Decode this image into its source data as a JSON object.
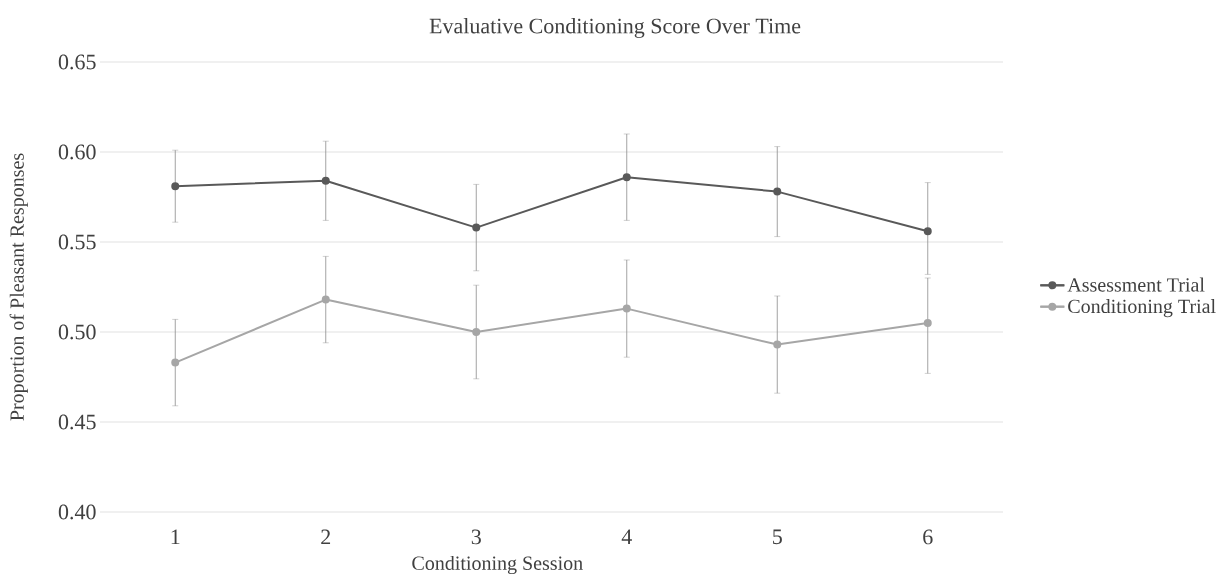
{
  "chart_data": {
    "type": "line",
    "title": "Evaluative Conditioning Score Over Time",
    "xlabel": "Conditioning Session",
    "ylabel": "Proportion of Pleasant Responses",
    "categories": [
      "1",
      "2",
      "3",
      "4",
      "5",
      "6"
    ],
    "series": [
      {
        "name": "Assessment Trial",
        "color": "#595959",
        "values": [
          0.581,
          0.584,
          0.558,
          0.586,
          0.578,
          0.556
        ],
        "errors": [
          0.02,
          0.022,
          0.024,
          0.024,
          0.025,
          [
            0.532,
            0.583
          ]
        ]
      },
      {
        "name": "Conditioning Trial",
        "color": "#a6a6a6",
        "values": [
          0.483,
          0.518,
          0.5,
          0.513,
          0.493,
          0.505
        ],
        "errors": [
          0.024,
          0.024,
          0.026,
          0.027,
          0.027,
          [
            0.477,
            0.53
          ]
        ]
      }
    ],
    "ylim": [
      0.4,
      0.65
    ],
    "yticks": [
      {
        "value": 0.4,
        "label": "0.40"
      },
      {
        "value": 0.45,
        "label": "0.45"
      },
      {
        "value": 0.5,
        "label": "0.50"
      },
      {
        "value": 0.55,
        "label": "0.55"
      },
      {
        "value": 0.6,
        "label": "0.60"
      },
      {
        "value": 0.65,
        "label": "0.65"
      }
    ],
    "grid": "y",
    "legend": "right",
    "marker": "circle",
    "line_style": "solid"
  }
}
